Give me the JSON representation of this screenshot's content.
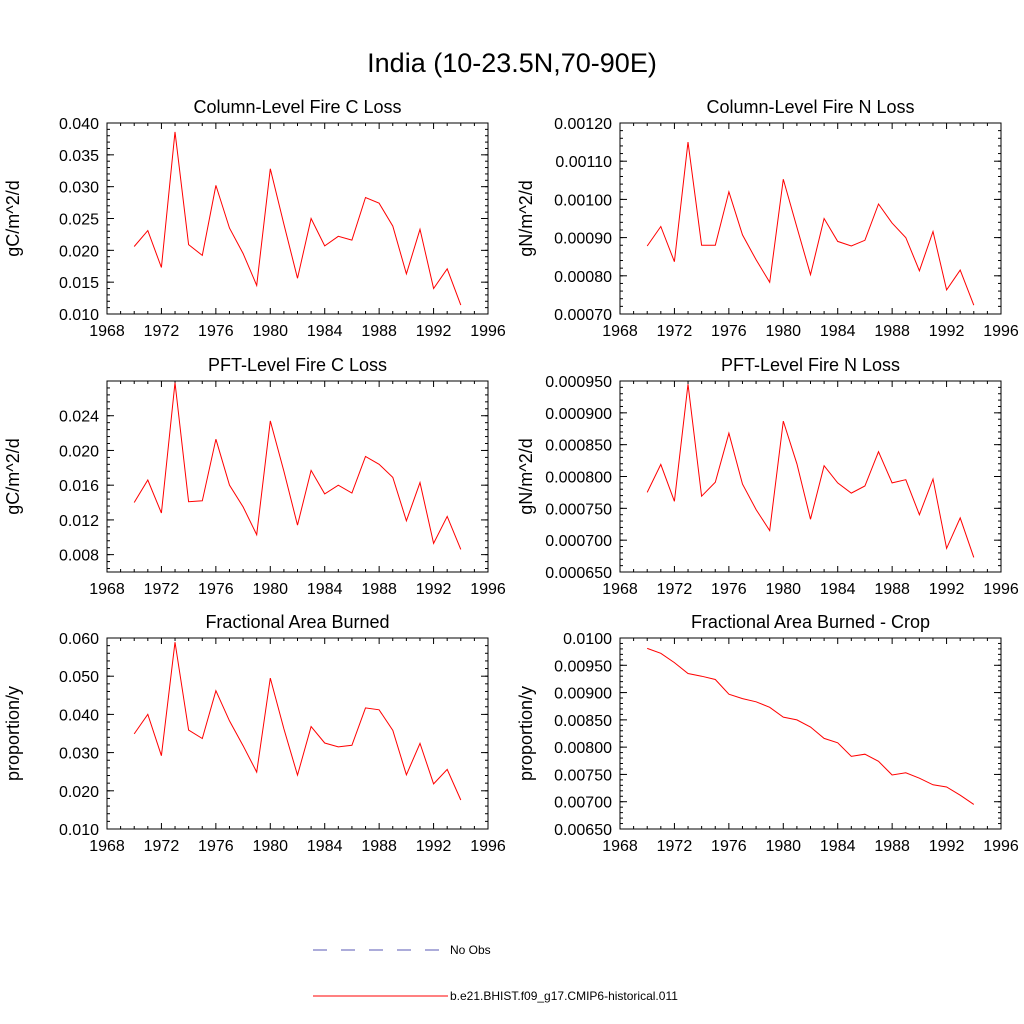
{
  "figure": {
    "title": "India (10-23.5N,70-90E)"
  },
  "legend": [
    {
      "label": "No Obs",
      "color": "#5a5ab4",
      "dash": true
    },
    {
      "label": "b.e21.BHIST.f09_g17.CMIP6-historical.011",
      "color": "#ff0000",
      "dash": false
    }
  ],
  "chart_data": [
    {
      "type": "line",
      "title": "Column-Level Fire C Loss",
      "ylabel": "gC/m^2/d",
      "xlim": [
        1968,
        1996
      ],
      "xticks": [
        "1968",
        "1972",
        "1976",
        "1980",
        "1984",
        "1988",
        "1992",
        "1996"
      ],
      "ylim": [
        0.01,
        0.04
      ],
      "yticks": [
        "0.010",
        "0.015",
        "0.020",
        "0.025",
        "0.030",
        "0.035",
        "0.040"
      ],
      "x": [
        1970,
        1971,
        1972,
        1973,
        1974,
        1975,
        1976,
        1977,
        1978,
        1979,
        1980,
        1981,
        1982,
        1983,
        1984,
        1985,
        1986,
        1987,
        1988,
        1989,
        1990,
        1991,
        1992,
        1993,
        1994
      ],
      "series": [
        {
          "color": "#ff0000",
          "values": [
            0.0206,
            0.0231,
            0.0173,
            0.0386,
            0.0209,
            0.0192,
            0.0302,
            0.0235,
            0.0195,
            0.0145,
            0.0328,
            0.0241,
            0.0156,
            0.025,
            0.0207,
            0.0222,
            0.0216,
            0.0283,
            0.0274,
            0.0238,
            0.0163,
            0.0233,
            0.014,
            0.0171,
            0.0114
          ]
        }
      ]
    },
    {
      "type": "line",
      "title": "Column-Level Fire N Loss",
      "ylabel": "gN/m^2/d",
      "xlim": [
        1968,
        1996
      ],
      "xticks": [
        "1968",
        "1972",
        "1976",
        "1980",
        "1984",
        "1988",
        "1992",
        "1996"
      ],
      "ylim": [
        0.0007,
        0.0012
      ],
      "yticks": [
        "0.00070",
        "0.00080",
        "0.00090",
        "0.00100",
        "0.00110",
        "0.00120"
      ],
      "x": [
        1970,
        1971,
        1972,
        1973,
        1974,
        1975,
        1976,
        1977,
        1978,
        1979,
        1980,
        1981,
        1982,
        1983,
        1984,
        1985,
        1986,
        1987,
        1988,
        1989,
        1990,
        1991,
        1992,
        1993,
        1994
      ],
      "series": [
        {
          "color": "#ff0000",
          "values": [
            0.000878,
            0.000929,
            0.000837,
            0.00115,
            0.00088,
            0.00088,
            0.00102,
            0.000907,
            0.000842,
            0.000783,
            0.001053,
            0.000927,
            0.000803,
            0.00095,
            0.00089,
            0.000878,
            0.000893,
            0.000988,
            0.000938,
            0.0009,
            0.000813,
            0.000916,
            0.000763,
            0.000815,
            0.000723
          ]
        }
      ]
    },
    {
      "type": "line",
      "title": "PFT-Level Fire C Loss",
      "ylabel": "gC/m^2/d",
      "xlim": [
        1968,
        1996
      ],
      "xticks": [
        "1968",
        "1972",
        "1976",
        "1980",
        "1984",
        "1988",
        "1992",
        "1996"
      ],
      "ylim": [
        0.006,
        0.028
      ],
      "yticks": [
        "0.008",
        "0.012",
        "0.016",
        "0.020",
        "0.024"
      ],
      "ytick_values": [
        0.008,
        0.012,
        0.016,
        0.02,
        0.024
      ],
      "x": [
        1970,
        1971,
        1972,
        1973,
        1974,
        1975,
        1976,
        1977,
        1978,
        1979,
        1980,
        1981,
        1982,
        1983,
        1984,
        1985,
        1986,
        1987,
        1988,
        1989,
        1990,
        1991,
        1992,
        1993,
        1994
      ],
      "series": [
        {
          "color": "#ff0000",
          "values": [
            0.014,
            0.0166,
            0.0128,
            0.0278,
            0.0141,
            0.0142,
            0.0213,
            0.016,
            0.0135,
            0.0103,
            0.0234,
            0.0176,
            0.0114,
            0.0177,
            0.015,
            0.016,
            0.0151,
            0.0193,
            0.0184,
            0.0169,
            0.0119,
            0.0163,
            0.0093,
            0.0124,
            0.0086
          ]
        }
      ]
    },
    {
      "type": "line",
      "title": "PFT-Level Fire N Loss",
      "ylabel": "gN/m^2/d",
      "xlim": [
        1968,
        1996
      ],
      "xticks": [
        "1968",
        "1972",
        "1976",
        "1980",
        "1984",
        "1988",
        "1992",
        "1996"
      ],
      "ylim": [
        0.00065,
        0.00095
      ],
      "yticks": [
        "0.000650",
        "0.000700",
        "0.000750",
        "0.000800",
        "0.000850",
        "0.000900",
        "0.000950"
      ],
      "x": [
        1970,
        1971,
        1972,
        1973,
        1974,
        1975,
        1976,
        1977,
        1978,
        1979,
        1980,
        1981,
        1982,
        1983,
        1984,
        1985,
        1986,
        1987,
        1988,
        1989,
        1990,
        1991,
        1992,
        1993,
        1994
      ],
      "series": [
        {
          "color": "#ff0000",
          "values": [
            0.000775,
            0.000819,
            0.000761,
            0.000945,
            0.000769,
            0.000791,
            0.000868,
            0.000788,
            0.000748,
            0.000715,
            0.000887,
            0.00082,
            0.000733,
            0.000817,
            0.00079,
            0.000774,
            0.000785,
            0.000839,
            0.00079,
            0.000795,
            0.00074,
            0.000796,
            0.000687,
            0.000735,
            0.000673
          ]
        }
      ]
    },
    {
      "type": "line",
      "title": "Fractional Area Burned",
      "ylabel": "proportion/y",
      "xlim": [
        1968,
        1996
      ],
      "xticks": [
        "1968",
        "1972",
        "1976",
        "1980",
        "1984",
        "1988",
        "1992",
        "1996"
      ],
      "ylim": [
        0.01,
        0.06
      ],
      "yticks": [
        "0.010",
        "0.020",
        "0.030",
        "0.040",
        "0.050",
        "0.060"
      ],
      "x": [
        1970,
        1971,
        1972,
        1973,
        1974,
        1975,
        1976,
        1977,
        1978,
        1979,
        1980,
        1981,
        1982,
        1983,
        1984,
        1985,
        1986,
        1987,
        1988,
        1989,
        1990,
        1991,
        1992,
        1993,
        1994
      ],
      "series": [
        {
          "color": "#ff0000",
          "values": [
            0.0349,
            0.04,
            0.0292,
            0.0589,
            0.0359,
            0.0337,
            0.0462,
            0.0383,
            0.0318,
            0.0249,
            0.0495,
            0.0362,
            0.0241,
            0.0368,
            0.0325,
            0.0315,
            0.0319,
            0.0417,
            0.0412,
            0.0358,
            0.0242,
            0.0324,
            0.0218,
            0.0256,
            0.0176
          ]
        }
      ]
    },
    {
      "type": "line",
      "title": "Fractional Area Burned - Crop",
      "ylabel": "proportion/y",
      "xlim": [
        1968,
        1996
      ],
      "xticks": [
        "1968",
        "1972",
        "1976",
        "1980",
        "1984",
        "1988",
        "1992",
        "1996"
      ],
      "ylim": [
        0.0065,
        0.01
      ],
      "yticks": [
        "0.00650",
        "0.00700",
        "0.00750",
        "0.00800",
        "0.00850",
        "0.00900",
        "0.00950",
        "0.0100"
      ],
      "x": [
        1970,
        1971,
        1972,
        1973,
        1974,
        1975,
        1976,
        1977,
        1978,
        1979,
        1980,
        1981,
        1982,
        1983,
        1984,
        1985,
        1986,
        1987,
        1988,
        1989,
        1990,
        1991,
        1992,
        1993,
        1994
      ],
      "series": [
        {
          "color": "#ff0000",
          "values": [
            0.00981,
            0.00972,
            0.00955,
            0.00935,
            0.0093,
            0.00924,
            0.00897,
            0.00889,
            0.00883,
            0.00873,
            0.00855,
            0.0085,
            0.00837,
            0.00816,
            0.00808,
            0.00783,
            0.00787,
            0.00774,
            0.00749,
            0.00753,
            0.00743,
            0.00731,
            0.00727,
            0.00712,
            0.00695
          ]
        }
      ]
    }
  ]
}
